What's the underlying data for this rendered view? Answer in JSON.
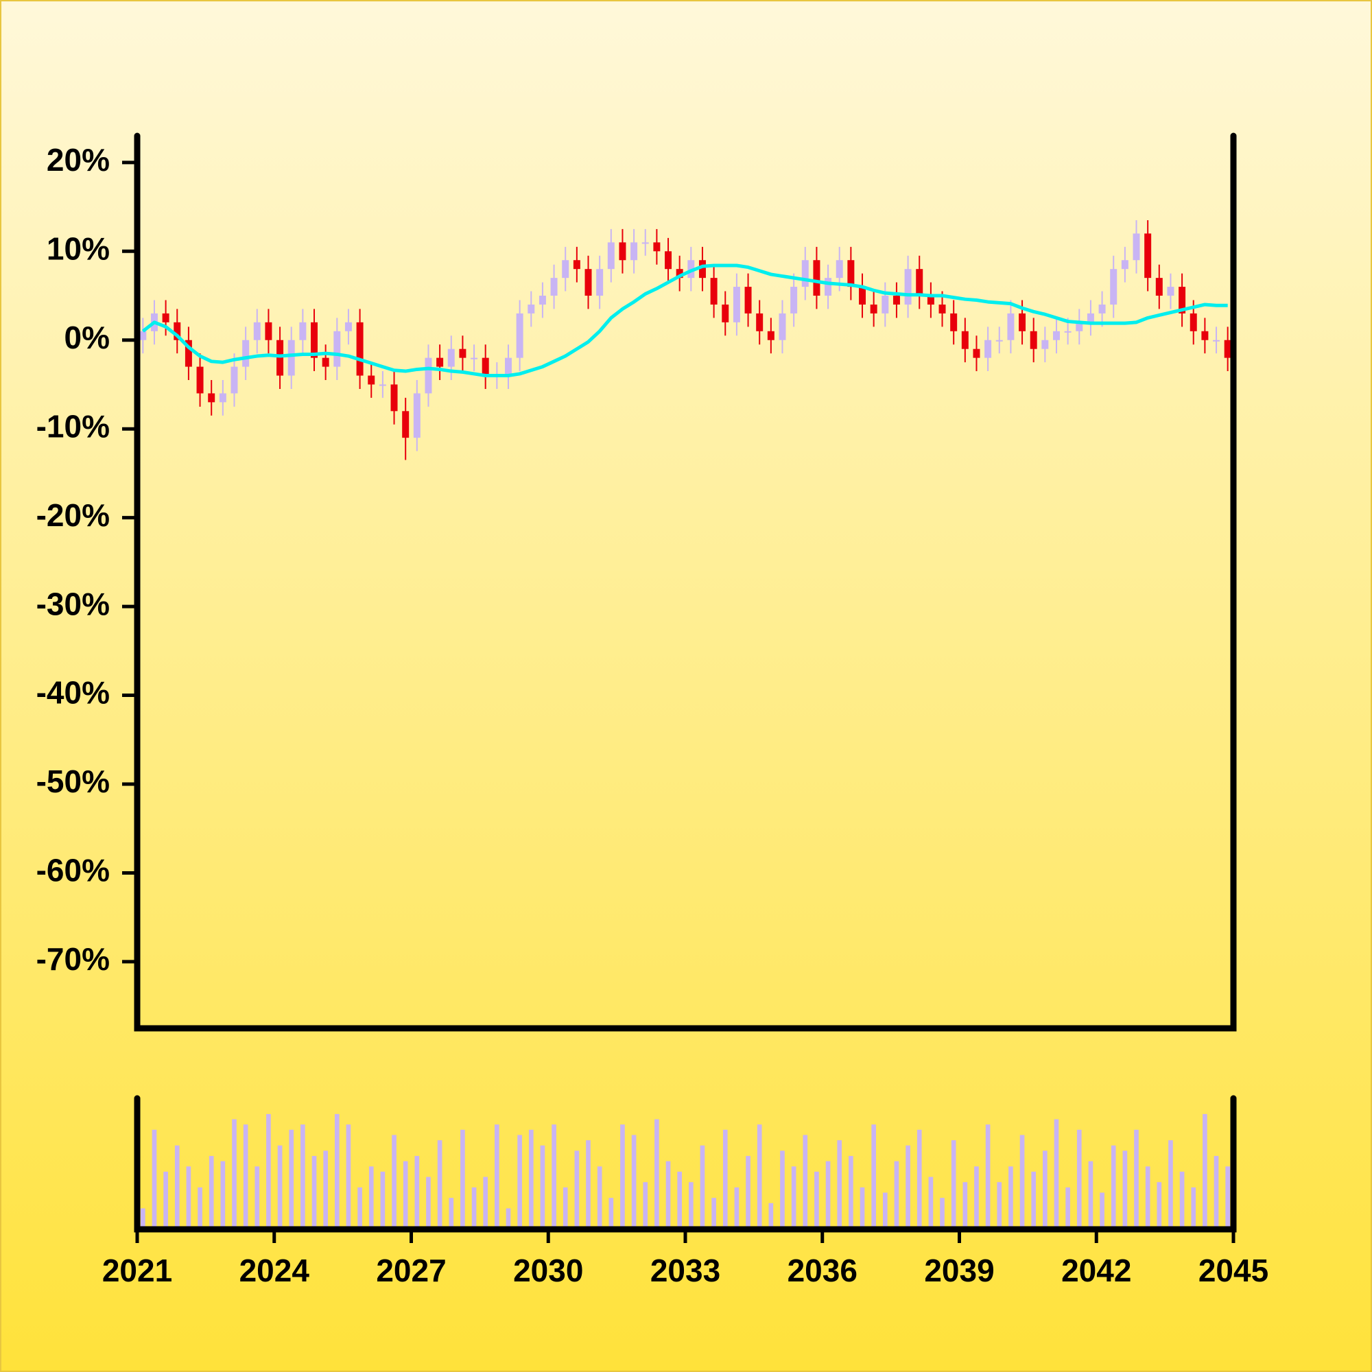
{
  "chart_data": {
    "type": "candlestick",
    "x": [
      2021.125,
      2021.375,
      2021.625,
      2021.875,
      2022.125,
      2022.375,
      2022.625,
      2022.875,
      2023.125,
      2023.375,
      2023.625,
      2023.875,
      2024.125,
      2024.375,
      2024.625,
      2024.875,
      2025.125,
      2025.375,
      2025.625,
      2025.875,
      2026.125,
      2026.375,
      2026.625,
      2026.875,
      2027.125,
      2027.375,
      2027.625,
      2027.875,
      2028.125,
      2028.375,
      2028.625,
      2028.875,
      2029.125,
      2029.375,
      2029.625,
      2029.875,
      2030.125,
      2030.375,
      2030.625,
      2030.875,
      2031.125,
      2031.375,
      2031.625,
      2031.875,
      2032.125,
      2032.375,
      2032.625,
      2032.875,
      2033.125,
      2033.375,
      2033.625,
      2033.875,
      2034.125,
      2034.375,
      2034.625,
      2034.875,
      2035.125,
      2035.375,
      2035.625,
      2035.875,
      2036.125,
      2036.375,
      2036.625,
      2036.875,
      2037.125,
      2037.375,
      2037.625,
      2037.875,
      2038.125,
      2038.375,
      2038.625,
      2038.875,
      2039.125,
      2039.375,
      2039.625,
      2039.875,
      2040.125,
      2040.375,
      2040.625,
      2040.875,
      2041.125,
      2041.375,
      2041.625,
      2041.875,
      2042.125,
      2042.375,
      2042.625,
      2042.875,
      2043.125,
      2043.375,
      2043.625,
      2043.875,
      2044.125,
      2044.375,
      2044.625,
      2044.875
    ],
    "open": [
      0,
      1,
      3,
      2,
      0,
      -3,
      -6,
      -7,
      -6,
      -3,
      0,
      2,
      0,
      -4,
      0,
      2,
      -2,
      -3,
      1,
      2,
      -4,
      -5,
      -5,
      -8,
      -11,
      -6,
      -2,
      -3,
      -1,
      -2,
      -2,
      -4,
      -4,
      -2,
      3,
      4,
      5,
      7,
      9,
      8,
      5,
      8,
      11,
      9,
      11,
      11,
      10,
      8,
      7,
      9,
      7,
      4,
      2,
      6,
      3,
      1,
      0,
      3,
      6,
      9,
      5,
      7,
      9,
      6,
      4,
      3,
      5,
      4,
      8,
      5,
      4,
      3,
      1,
      -1,
      -2,
      0,
      0,
      3,
      1,
      -1,
      0,
      1,
      1,
      2,
      3,
      4,
      8,
      9,
      12,
      7,
      5,
      6,
      3,
      1,
      0,
      0
    ],
    "high": [
      2.5,
      4.5,
      4.5,
      3.5,
      1.5,
      -1.5,
      -4.5,
      -4.5,
      -1.5,
      1.5,
      3.5,
      3.5,
      1.5,
      1.5,
      3.5,
      3.5,
      -0.5,
      2.5,
      3.5,
      3.5,
      -2.5,
      -3.5,
      -3.5,
      -6.5,
      -4.5,
      -0.5,
      -0.5,
      0.5,
      0.5,
      -0.5,
      -0.5,
      -2.5,
      -0.5,
      4.5,
      5.5,
      6.5,
      8.5,
      10.5,
      10.5,
      9.5,
      9.5,
      12.5,
      12.5,
      12.5,
      12.5,
      12.5,
      11.5,
      9.5,
      10.5,
      10.5,
      8.5,
      5.5,
      7.5,
      7.5,
      4.5,
      2.5,
      4.5,
      7.5,
      10.5,
      10.5,
      8.5,
      10.5,
      10.5,
      7.5,
      5.5,
      6.5,
      6.5,
      9.5,
      9.5,
      6.5,
      5.5,
      4.5,
      2.5,
      0.5,
      1.5,
      1.5,
      4.5,
      4.5,
      2.5,
      1.5,
      2.5,
      2.5,
      3.5,
      4.5,
      5.5,
      9.5,
      10.5,
      13.5,
      13.5,
      8.5,
      7.5,
      7.5,
      4.5,
      2.5,
      1.5,
      1.5
    ],
    "low": [
      -1.5,
      -0.5,
      0.5,
      -1.5,
      -4.5,
      -7.5,
      -8.5,
      -8.5,
      -7.5,
      -4.5,
      -1.5,
      -1.5,
      -5.5,
      -5.5,
      -1.5,
      -3.5,
      -4.5,
      -4.5,
      -0.5,
      -5.5,
      -6.5,
      -6.5,
      -9.5,
      -13.5,
      -12.5,
      -7.5,
      -4.5,
      -4.5,
      -3.5,
      -3.5,
      -5.5,
      -5.5,
      -5.5,
      -3.5,
      1.5,
      2.5,
      3.5,
      5.5,
      6.5,
      3.5,
      3.5,
      6.5,
      7.5,
      7.5,
      9.5,
      8.5,
      6.5,
      5.5,
      5.5,
      5.5,
      2.5,
      0.5,
      0.5,
      1.5,
      -0.5,
      -1.5,
      -1.5,
      1.5,
      4.5,
      3.5,
      3.5,
      5.5,
      4.5,
      2.5,
      1.5,
      1.5,
      2.5,
      2.5,
      3.5,
      2.5,
      1.5,
      -0.5,
      -2.5,
      -3.5,
      -3.5,
      -1.5,
      -1.5,
      -0.5,
      -2.5,
      -2.5,
      -1.5,
      -0.5,
      -0.5,
      0.5,
      1.5,
      2.5,
      6.5,
      7.5,
      5.5,
      3.5,
      3.5,
      1.5,
      -0.5,
      -1.5,
      -1.5,
      -3.5
    ],
    "close": [
      1,
      3,
      2,
      0,
      -3,
      -6,
      -7,
      -6,
      -3,
      0,
      2,
      0,
      -4,
      0,
      2,
      -2,
      -3,
      1,
      2,
      -4,
      -5,
      -5,
      -8,
      -11,
      -6,
      -2,
      -3,
      -1,
      -2,
      -2,
      -4,
      -4,
      -2,
      3,
      4,
      5,
      7,
      9,
      8,
      5,
      8,
      11,
      9,
      11,
      11,
      10,
      8,
      7,
      9,
      7,
      4,
      2,
      6,
      3,
      1,
      0,
      3,
      6,
      9,
      5,
      7,
      9,
      6,
      4,
      3,
      5,
      4,
      8,
      5,
      4,
      3,
      1,
      -1,
      -2,
      0,
      0,
      3,
      1,
      -1,
      0,
      1,
      1,
      2,
      3,
      4,
      8,
      9,
      12,
      7,
      5,
      6,
      3,
      1,
      0,
      0,
      -2
    ],
    "up_color": "#c8b4f4",
    "down_color": "#e8000b",
    "ma": {
      "color": "#00eeee",
      "values": [
        1,
        2,
        1.5,
        0.5,
        -0.8,
        -1.8,
        -2.4,
        -2.5,
        -2.2,
        -2,
        -1.8,
        -1.7,
        -1.8,
        -1.7,
        -1.6,
        -1.6,
        -1.5,
        -1.6,
        -1.8,
        -2.2,
        -2.6,
        -3,
        -3.4,
        -3.5,
        -3.3,
        -3.2,
        -3.3,
        -3.5,
        -3.6,
        -3.8,
        -4,
        -4,
        -4,
        -3.8,
        -3.4,
        -3,
        -2.4,
        -1.8,
        -1,
        -0.2,
        1,
        2.5,
        3.5,
        4.3,
        5.2,
        5.8,
        6.5,
        7.2,
        7.8,
        8.3,
        8.4,
        8.4,
        8.4,
        8.2,
        7.8,
        7.4,
        7.2,
        7,
        6.8,
        6.6,
        6.4,
        6.3,
        6.2,
        6,
        5.6,
        5.3,
        5.2,
        5.1,
        5.1,
        5,
        5,
        4.8,
        4.6,
        4.5,
        4.3,
        4.2,
        4.1,
        3.6,
        3.2,
        2.9,
        2.5,
        2.1,
        2,
        1.9,
        1.9,
        1.9,
        1.9,
        2,
        2.5,
        2.8,
        3.1,
        3.4,
        3.7,
        4,
        3.9,
        3.9
      ]
    },
    "volume": {
      "color": "#c8b4f4",
      "ylim": [
        0,
        125
      ],
      "values": [
        20,
        95,
        55,
        80,
        60,
        40,
        70,
        65,
        105,
        100,
        60,
        110,
        80,
        95,
        100,
        70,
        75,
        110,
        100,
        40,
        60,
        55,
        90,
        65,
        70,
        50,
        85,
        30,
        95,
        40,
        50,
        100,
        20,
        90,
        95,
        80,
        100,
        40,
        75,
        85,
        60,
        30,
        100,
        90,
        45,
        105,
        65,
        55,
        45,
        80,
        30,
        95,
        40,
        70,
        100,
        25,
        75,
        60,
        90,
        55,
        65,
        85,
        70,
        40,
        100,
        35,
        65,
        80,
        95,
        50,
        30,
        85,
        45,
        60,
        100,
        45,
        60,
        90,
        55,
        75,
        105,
        40,
        95,
        65,
        35,
        80,
        75,
        95,
        60,
        45,
        85,
        55,
        40,
        110,
        70,
        60
      ]
    },
    "xlim": [
      2021,
      2045
    ],
    "xticks": [
      2021,
      2024,
      2027,
      2030,
      2033,
      2036,
      2039,
      2042,
      2045
    ],
    "ylim": [
      -77.5,
      23
    ],
    "yticks": [
      {
        "value": 20,
        "label": "20%"
      },
      {
        "value": 10,
        "label": "10%"
      },
      {
        "value": 0,
        "label": "0%"
      },
      {
        "value": -10,
        "label": "-10%"
      },
      {
        "value": -20,
        "label": "-20%"
      },
      {
        "value": -30,
        "label": "-30%"
      },
      {
        "value": -40,
        "label": "-40%"
      },
      {
        "value": -50,
        "label": "-50%"
      },
      {
        "value": -60,
        "label": "-60%"
      },
      {
        "value": -70,
        "label": "-70%"
      }
    ]
  }
}
